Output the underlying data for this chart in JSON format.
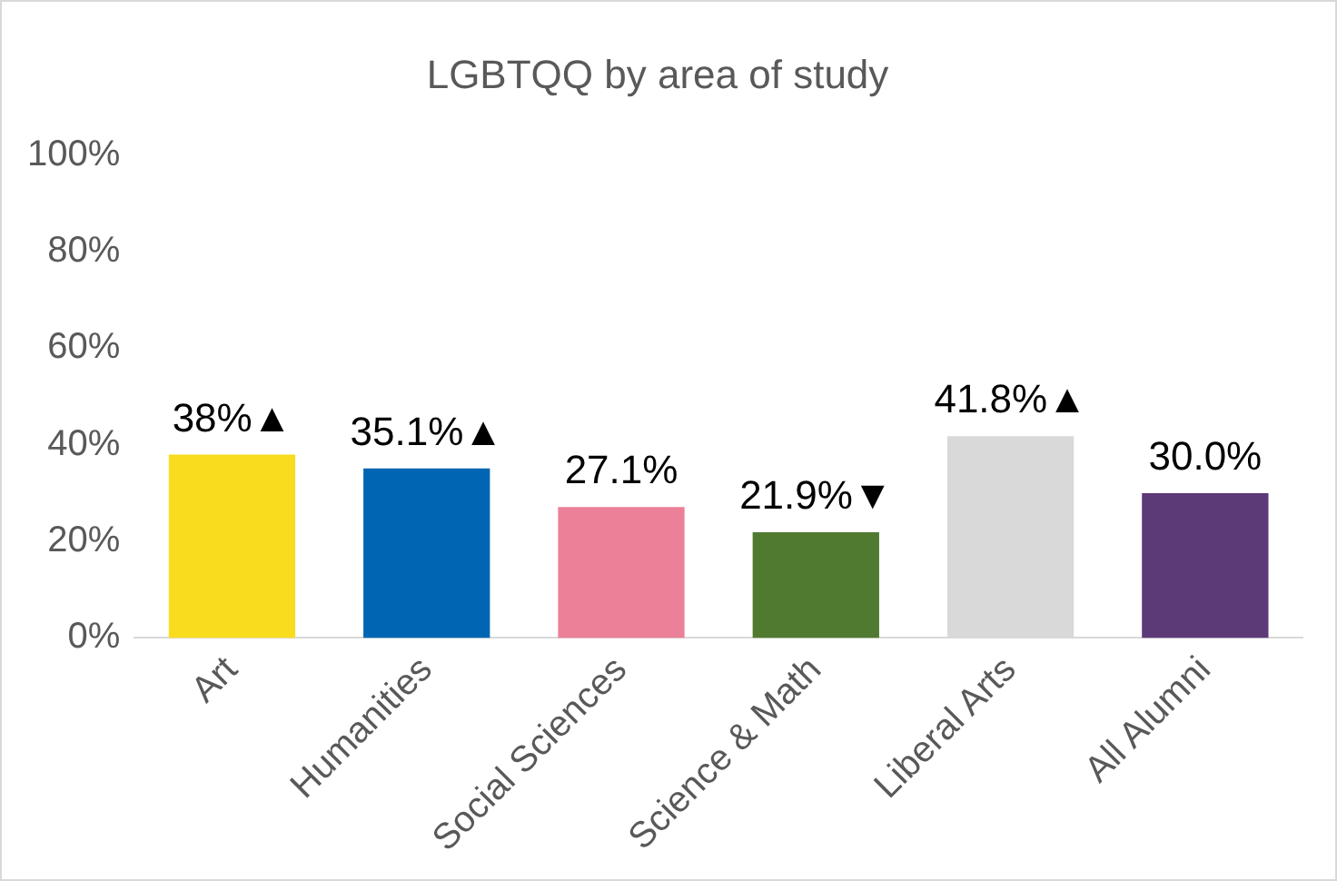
{
  "chart_data": {
    "type": "bar",
    "title": "LGBTQQ by area of study",
    "categories": [
      "Art",
      "Humanities",
      "Social Sciences",
      "Science & Math",
      "Liberal Arts",
      "All Alumni"
    ],
    "values": [
      38,
      35.1,
      27.1,
      21.9,
      41.8,
      30.0
    ],
    "colors": [
      "#f9dc1e",
      "#0066b3",
      "#ec8099",
      "#507a2f",
      "#d9d9d9",
      "#5c3977"
    ],
    "value_labels": [
      "38%▲",
      "35.1%▲",
      "27.1%",
      "21.9%▼",
      "41.8%▲",
      "30.0%"
    ],
    "ylim": [
      0,
      100
    ],
    "yticks": [
      {
        "value": 0,
        "label": "0%"
      },
      {
        "value": 20,
        "label": "20%"
      },
      {
        "value": 40,
        "label": "40%"
      },
      {
        "value": 60,
        "label": "60%"
      },
      {
        "value": 80,
        "label": "80%"
      },
      {
        "value": 100,
        "label": "100%"
      }
    ],
    "grid": false,
    "legend": false
  }
}
